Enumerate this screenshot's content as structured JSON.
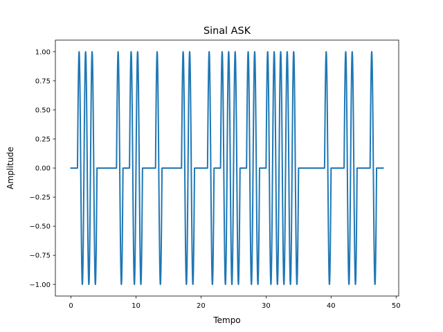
{
  "chart_data": {
    "type": "line",
    "title": "Sinal ASK",
    "xlabel": "Tempo",
    "ylabel": "Amplitude",
    "xlim": [
      -2.4,
      50.4
    ],
    "ylim": [
      -1.1,
      1.1
    ],
    "xticks": [
      0,
      10,
      20,
      30,
      40,
      50
    ],
    "xtick_labels": [
      "0",
      "10",
      "20",
      "30",
      "40",
      "50"
    ],
    "yticks": [
      -1.0,
      -0.75,
      -0.5,
      -0.25,
      0.0,
      0.25,
      0.5,
      0.75,
      1.0
    ],
    "ytick_labels": [
      "−1.00",
      "−0.75",
      "−0.50",
      "−0.25",
      "0.00",
      "0.25",
      "0.50",
      "0.75",
      "1.00"
    ],
    "grid": false,
    "legend": "none",
    "series": [
      {
        "color": "#1f77b4",
        "bits": [
          0,
          1,
          1,
          1,
          0,
          0,
          0,
          1,
          0,
          1,
          1,
          0,
          0,
          1,
          0,
          0,
          0,
          1,
          1,
          0,
          0,
          1,
          0,
          1,
          1,
          1,
          0,
          1,
          1,
          0,
          1,
          1,
          1,
          1,
          1,
          0,
          0,
          0,
          0,
          1,
          0,
          0,
          1,
          1,
          0,
          0,
          1,
          0
        ],
        "bit_duration": 1,
        "carrier_cycles_per_bit": 1,
        "x_end": 48
      }
    ]
  }
}
